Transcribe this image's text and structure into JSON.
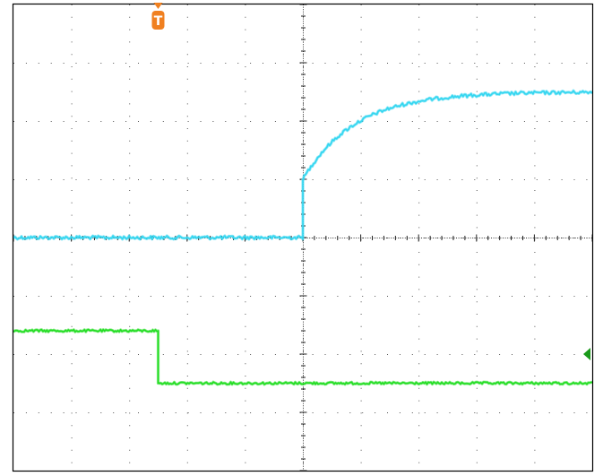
{
  "chart_data": {
    "type": "line",
    "title": "",
    "xlabel": "",
    "ylabel": "",
    "x_divisions": 10,
    "y_divisions": 8,
    "grid": true,
    "grid_style": "dotted",
    "trigger_marker": {
      "label": "T",
      "color": "#f08020",
      "x_div": 2.5
    },
    "ground_marker": {
      "series": "ch2",
      "color": "#1a9a1a",
      "y_div": 6.0
    },
    "series": [
      {
        "id": "ch1",
        "color": "#33d6f0",
        "noise_div": 0.03,
        "segments": [
          {
            "kind": "flat",
            "x0": 0,
            "x1": 5.0,
            "y": 4.0
          },
          {
            "kind": "vertical",
            "x": 5.0,
            "y0": 4.0,
            "y1": 3.0
          },
          {
            "kind": "exp",
            "x0": 5.0,
            "x1": 10.0,
            "y_start": 3.0,
            "y_end": 1.5,
            "tau_div": 0.9
          }
        ]
      },
      {
        "id": "ch2",
        "color": "#22dd22",
        "noise_div": 0.02,
        "segments": [
          {
            "kind": "flat",
            "x0": 0,
            "x1": 2.5,
            "y": 5.6
          },
          {
            "kind": "vertical",
            "x": 2.5,
            "y0": 5.6,
            "y1": 6.5
          },
          {
            "kind": "flat",
            "x0": 2.5,
            "x1": 10.0,
            "y": 6.5
          }
        ]
      }
    ]
  }
}
